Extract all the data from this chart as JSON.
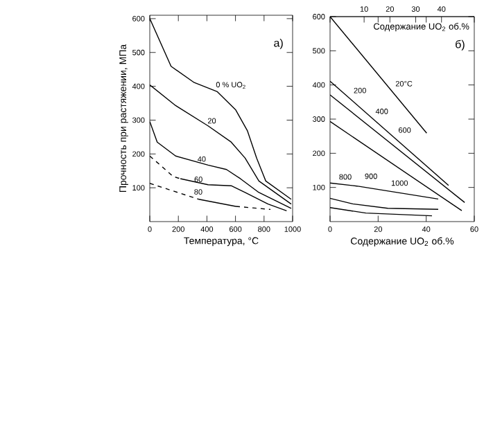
{
  "chart_data": [
    {
      "type": "line",
      "xlabel": "Температура, °C",
      "ylabel": "Прочность при растяжении, МПа",
      "xlim": [
        0,
        1000
      ],
      "ylim": [
        0,
        610
      ],
      "xticks": [
        0,
        200,
        400,
        600,
        800,
        1000
      ],
      "yticks": [
        100,
        200,
        300,
        400,
        500,
        600
      ],
      "series": [
        {
          "color": "#000000",
          "line_style": "solid",
          "x": [
            0,
            149,
            311,
            473,
            602,
            683,
            748,
            812,
            990
          ],
          "values": [
            600,
            459,
            411,
            384,
            330,
            269,
            188,
            120,
            66
          ]
        },
        {
          "color": "#000000",
          "line_style": "solid",
          "x": [
            0,
            181,
            408,
            570,
            667,
            764,
            990
          ],
          "values": [
            404,
            343,
            283,
            235,
            188,
            120,
            52
          ]
        },
        {
          "color": "#000000",
          "line_style": "solid",
          "x": [
            0,
            52,
            181,
            408,
            537,
            634,
            764,
            990
          ],
          "values": [
            296,
            235,
            194,
            167,
            154,
            127,
            86,
            39
          ]
        },
        {
          "color": "#000000",
          "line_style": "dashed",
          "x": [
            0,
            165,
            214
          ],
          "values": [
            194,
            133,
            127
          ]
        },
        {
          "color": "#000000",
          "line_style": "solid",
          "x": [
            214,
            408,
            570,
            667,
            828,
            958
          ],
          "values": [
            127,
            109,
            106,
            86,
            52,
            32
          ]
        },
        {
          "color": "#000000",
          "line_style": "dashed",
          "x": [
            0,
            343
          ],
          "values": [
            113,
            66
          ]
        },
        {
          "color": "#000000",
          "line_style": "solid",
          "x": [
            343,
            602
          ],
          "values": [
            66,
            45
          ]
        },
        {
          "color": "#000000",
          "line_style": "dashed",
          "x": [
            602,
            845
          ],
          "values": [
            45,
            36
          ]
        }
      ],
      "annotations": [
        {
          "text": "0 % UO$_{2}$",
          "x": 456,
          "y": 388
        },
        {
          "text": "20",
          "x": 398,
          "y": 285
        },
        {
          "text": "40",
          "x": 327,
          "y": 172
        },
        {
          "text": "60",
          "x": 304,
          "y": 112
        },
        {
          "text": "80",
          "x": 303,
          "y": 75
        },
        "а)"
      ]
    },
    {
      "type": "line",
      "xlabel": "Содержание UO$_{2}$ об.%",
      "x2label": "Содержание UO$_{2}$ об.%",
      "xlim": [
        0,
        60
      ],
      "ylim": [
        0,
        600
      ],
      "x2lim": [
        -3.2,
        52.7
      ],
      "xticks": [
        0,
        20,
        40,
        60
      ],
      "x2ticks": [
        10,
        20,
        30,
        40
      ],
      "yticks": [
        100,
        200,
        300,
        400,
        500,
        600
      ],
      "series": [
        {
          "color": "#000000",
          "line_style": "solid",
          "x": [
            0,
            40.2
          ],
          "values": [
            600,
            259
          ]
        },
        {
          "color": "#000000",
          "line_style": "solid",
          "x": [
            0,
            49.3
          ],
          "values": [
            411,
            106
          ]
        },
        {
          "color": "#000000",
          "line_style": "solid",
          "x": [
            0,
            56
          ],
          "values": [
            371,
            56
          ]
        },
        {
          "color": "#000000",
          "line_style": "solid",
          "x": [
            0,
            54.8
          ],
          "values": [
            293,
            32
          ]
        },
        {
          "color": "#000000",
          "line_style": "solid",
          "x": [
            0,
            11.2,
            45
          ],
          "values": [
            113,
            104,
            66
          ]
        },
        {
          "color": "#000000",
          "line_style": "solid",
          "x": [
            0,
            9.4,
            24,
            45
          ],
          "values": [
            68,
            52,
            39,
            36
          ]
        },
        {
          "color": "#000000",
          "line_style": "solid",
          "x": [
            0,
            14.9,
            42.4
          ],
          "values": [
            41,
            25,
            17
          ]
        }
      ],
      "annotations": [
        {
          "text": "20°C",
          "x": 26.8,
          "y": 391
        },
        {
          "text": "200",
          "x": 9.4,
          "y": 371
        },
        {
          "text": "400",
          "x": 18.5,
          "y": 310
        },
        {
          "text": "600",
          "x": 28,
          "y": 255
        },
        {
          "text": "800",
          "x": 3.3,
          "y": 118
        },
        {
          "text": "900",
          "x": 14,
          "y": 120
        },
        {
          "text": "1000",
          "x": 25,
          "y": 100
        },
        "б)"
      ]
    }
  ]
}
